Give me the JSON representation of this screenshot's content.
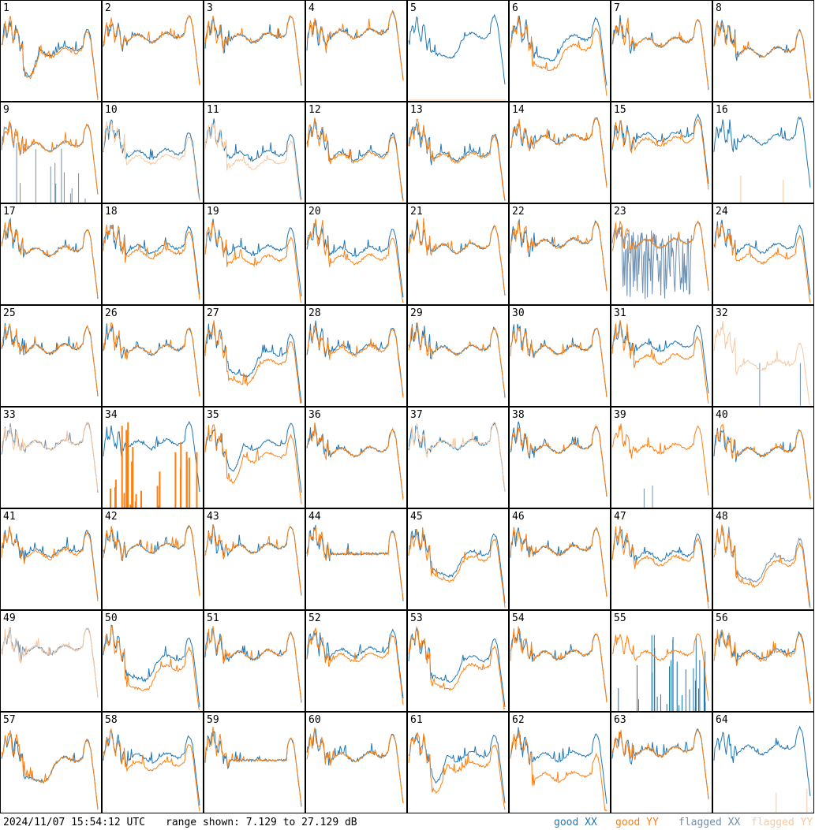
{
  "chart_data": {
    "type": "line",
    "timestamp": "2024/11/07 15:54:12 UTC",
    "range_text": "range shown: 7.129 to 27.129 dB",
    "range_db": [
      7.129,
      27.129
    ],
    "legend": [
      {
        "label": "good XX",
        "color": "#1f77b4"
      },
      {
        "label": "good YY",
        "color": "#ff7f0e"
      },
      {
        "label": "flagged XX",
        "color": "#7090b0"
      },
      {
        "label": "flagged YY",
        "color": "#f8c8a0"
      }
    ],
    "grid": "8x8",
    "panels": [
      {
        "id": "1",
        "xx": "good",
        "yy": "good",
        "base": 0.48,
        "spread": 0.02,
        "style": "crash"
      },
      {
        "id": "2",
        "xx": "good",
        "yy": "good",
        "base": 0.62,
        "spread": 0.0,
        "style": "normal"
      },
      {
        "id": "3",
        "xx": "good",
        "yy": "good",
        "base": 0.62,
        "spread": 0.0,
        "style": "normal"
      },
      {
        "id": "4",
        "xx": "good",
        "yy": "good",
        "base": 0.66,
        "spread": 0.0,
        "style": "normal"
      },
      {
        "id": "5",
        "xx": "good",
        "yy": "dead",
        "base": 0.62,
        "spread": 0.0,
        "style": "dip"
      },
      {
        "id": "6",
        "xx": "good",
        "yy": "good",
        "base": 0.55,
        "spread": 0.1,
        "style": "dip"
      },
      {
        "id": "7",
        "xx": "good",
        "yy": "good",
        "base": 0.58,
        "spread": 0.0,
        "style": "normal"
      },
      {
        "id": "8",
        "xx": "good",
        "yy": "good",
        "base": 0.48,
        "spread": 0.0,
        "style": "normal"
      },
      {
        "id": "9",
        "xx": "flagged",
        "yy": "good",
        "base": 0.55,
        "spread": 0.0,
        "style": "spikes"
      },
      {
        "id": "10",
        "xx": "good",
        "yy": "flagged",
        "base": 0.45,
        "spread": 0.05,
        "style": "normal"
      },
      {
        "id": "11",
        "xx": "good",
        "yy": "flagged",
        "base": 0.42,
        "spread": 0.08,
        "style": "normal"
      },
      {
        "id": "12",
        "xx": "good",
        "yy": "good",
        "base": 0.45,
        "spread": 0.02,
        "style": "normal"
      },
      {
        "id": "13",
        "xx": "good",
        "yy": "good",
        "base": 0.45,
        "spread": 0.02,
        "style": "normal"
      },
      {
        "id": "14",
        "xx": "good",
        "yy": "good",
        "base": 0.62,
        "spread": 0.0,
        "style": "normal"
      },
      {
        "id": "15",
        "xx": "good",
        "yy": "good",
        "base": 0.62,
        "spread": 0.05,
        "style": "normal"
      },
      {
        "id": "16",
        "xx": "good",
        "yy": "flagged_spike",
        "base": 0.62,
        "spread": 0.0,
        "style": "normal"
      },
      {
        "id": "17",
        "xx": "good",
        "yy": "good",
        "base": 0.52,
        "spread": 0.0,
        "style": "normal"
      },
      {
        "id": "18",
        "xx": "good",
        "yy": "good",
        "base": 0.52,
        "spread": 0.05,
        "style": "normal"
      },
      {
        "id": "19",
        "xx": "good",
        "yy": "good",
        "base": 0.48,
        "spread": 0.1,
        "style": "normal"
      },
      {
        "id": "20",
        "xx": "good",
        "yy": "good",
        "base": 0.48,
        "spread": 0.08,
        "style": "normal"
      },
      {
        "id": "21",
        "xx": "good",
        "yy": "good",
        "base": 0.55,
        "spread": 0.0,
        "style": "normal"
      },
      {
        "id": "22",
        "xx": "good",
        "yy": "good",
        "base": 0.6,
        "spread": 0.0,
        "style": "normal"
      },
      {
        "id": "23",
        "xx": "flagged",
        "yy": "good",
        "base": 0.6,
        "spread": 0.0,
        "style": "noise"
      },
      {
        "id": "24",
        "xx": "good",
        "yy": "good",
        "base": 0.5,
        "spread": 0.1,
        "style": "normal"
      },
      {
        "id": "25",
        "xx": "good",
        "yy": "good",
        "base": 0.56,
        "spread": 0.0,
        "style": "normal"
      },
      {
        "id": "26",
        "xx": "good",
        "yy": "good",
        "base": 0.55,
        "spread": 0.0,
        "style": "normal"
      },
      {
        "id": "27",
        "xx": "good",
        "yy": "good",
        "base": 0.45,
        "spread": 0.08,
        "style": "dip"
      },
      {
        "id": "28",
        "xx": "good",
        "yy": "good",
        "base": 0.55,
        "spread": 0.02,
        "style": "normal"
      },
      {
        "id": "29",
        "xx": "good",
        "yy": "good",
        "base": 0.55,
        "spread": 0.0,
        "style": "normal"
      },
      {
        "id": "30",
        "xx": "good",
        "yy": "good",
        "base": 0.55,
        "spread": 0.0,
        "style": "normal"
      },
      {
        "id": "31",
        "xx": "good",
        "yy": "good",
        "base": 0.52,
        "spread": 0.12,
        "style": "normal"
      },
      {
        "id": "32",
        "xx": "flagged_spike",
        "yy": "flagged",
        "base": 0.4,
        "spread": 0.0,
        "style": "normal"
      },
      {
        "id": "33",
        "xx": "flagged",
        "yy": "flagged",
        "base": 0.62,
        "spread": 0.0,
        "style": "normal"
      },
      {
        "id": "34",
        "xx": "good",
        "yy": "spikes",
        "base": 0.62,
        "spread": 0.0,
        "style": "normal"
      },
      {
        "id": "35",
        "xx": "good",
        "yy": "good",
        "base": 0.55,
        "spread": 0.12,
        "style": "crash"
      },
      {
        "id": "36",
        "xx": "good",
        "yy": "good",
        "base": 0.55,
        "spread": 0.0,
        "style": "normal"
      },
      {
        "id": "37",
        "xx": "good",
        "yy": "flagged",
        "base": 0.62,
        "spread": 0.0,
        "style": "normal"
      },
      {
        "id": "38",
        "xx": "good",
        "yy": "good",
        "base": 0.58,
        "spread": 0.0,
        "style": "normal"
      },
      {
        "id": "39",
        "xx": "flagged_spike",
        "yy": "good",
        "base": 0.58,
        "spread": 0.0,
        "style": "normal"
      },
      {
        "id": "40",
        "xx": "good",
        "yy": "good",
        "base": 0.55,
        "spread": 0.0,
        "style": "normal"
      },
      {
        "id": "41",
        "xx": "good",
        "yy": "good",
        "base": 0.55,
        "spread": 0.02,
        "style": "normal"
      },
      {
        "id": "42",
        "xx": "good",
        "yy": "good",
        "base": 0.6,
        "spread": 0.0,
        "style": "normal"
      },
      {
        "id": "43",
        "xx": "good",
        "yy": "good",
        "base": 0.6,
        "spread": 0.0,
        "style": "normal"
      },
      {
        "id": "44",
        "xx": "good",
        "yy": "good",
        "base": 0.55,
        "spread": 0.0,
        "style": "flat"
      },
      {
        "id": "45",
        "xx": "good",
        "yy": "good",
        "base": 0.5,
        "spread": 0.05,
        "style": "dip"
      },
      {
        "id": "46",
        "xx": "good",
        "yy": "good",
        "base": 0.58,
        "spread": 0.0,
        "style": "normal"
      },
      {
        "id": "47",
        "xx": "good",
        "yy": "good",
        "base": 0.5,
        "spread": 0.05,
        "style": "normal"
      },
      {
        "id": "48",
        "xx": "flagged",
        "yy": "good",
        "base": 0.45,
        "spread": 0.05,
        "style": "dip"
      },
      {
        "id": "49",
        "xx": "flagged",
        "yy": "flagged",
        "base": 0.6,
        "spread": 0.0,
        "style": "normal"
      },
      {
        "id": "50",
        "xx": "good",
        "yy": "good",
        "base": 0.45,
        "spread": 0.1,
        "style": "dip"
      },
      {
        "id": "51",
        "xx": "good",
        "yy": "good",
        "base": 0.55,
        "spread": 0.0,
        "style": "normal"
      },
      {
        "id": "52",
        "xx": "good",
        "yy": "good",
        "base": 0.55,
        "spread": 0.05,
        "style": "normal"
      },
      {
        "id": "53",
        "xx": "good",
        "yy": "good",
        "base": 0.45,
        "spread": 0.08,
        "style": "dip"
      },
      {
        "id": "54",
        "xx": "good",
        "yy": "good",
        "base": 0.55,
        "spread": 0.0,
        "style": "normal"
      },
      {
        "id": "55",
        "xx": "spikes",
        "yy": "good",
        "base": 0.55,
        "spread": 0.0,
        "style": "normal"
      },
      {
        "id": "56",
        "xx": "good",
        "yy": "good",
        "base": 0.55,
        "spread": 0.02,
        "style": "normal"
      },
      {
        "id": "57",
        "xx": "good",
        "yy": "good",
        "base": 0.5,
        "spread": 0.0,
        "style": "dip"
      },
      {
        "id": "58",
        "xx": "good",
        "yy": "good",
        "base": 0.5,
        "spread": 0.08,
        "style": "normal"
      },
      {
        "id": "59",
        "xx": "good",
        "yy": "good",
        "base": 0.52,
        "spread": 0.0,
        "style": "flat"
      },
      {
        "id": "60",
        "xx": "good",
        "yy": "good",
        "base": 0.55,
        "spread": 0.0,
        "style": "normal"
      },
      {
        "id": "61",
        "xx": "good",
        "yy": "good",
        "base": 0.5,
        "spread": 0.1,
        "style": "crash"
      },
      {
        "id": "62",
        "xx": "good",
        "yy": "good",
        "base": 0.45,
        "spread": 0.2,
        "style": "normal"
      },
      {
        "id": "63",
        "xx": "good",
        "yy": "good",
        "base": 0.6,
        "spread": 0.0,
        "style": "normal"
      },
      {
        "id": "64",
        "xx": "good",
        "yy": "flagged_spike",
        "base": 0.62,
        "spread": 0.0,
        "style": "normal"
      }
    ]
  }
}
